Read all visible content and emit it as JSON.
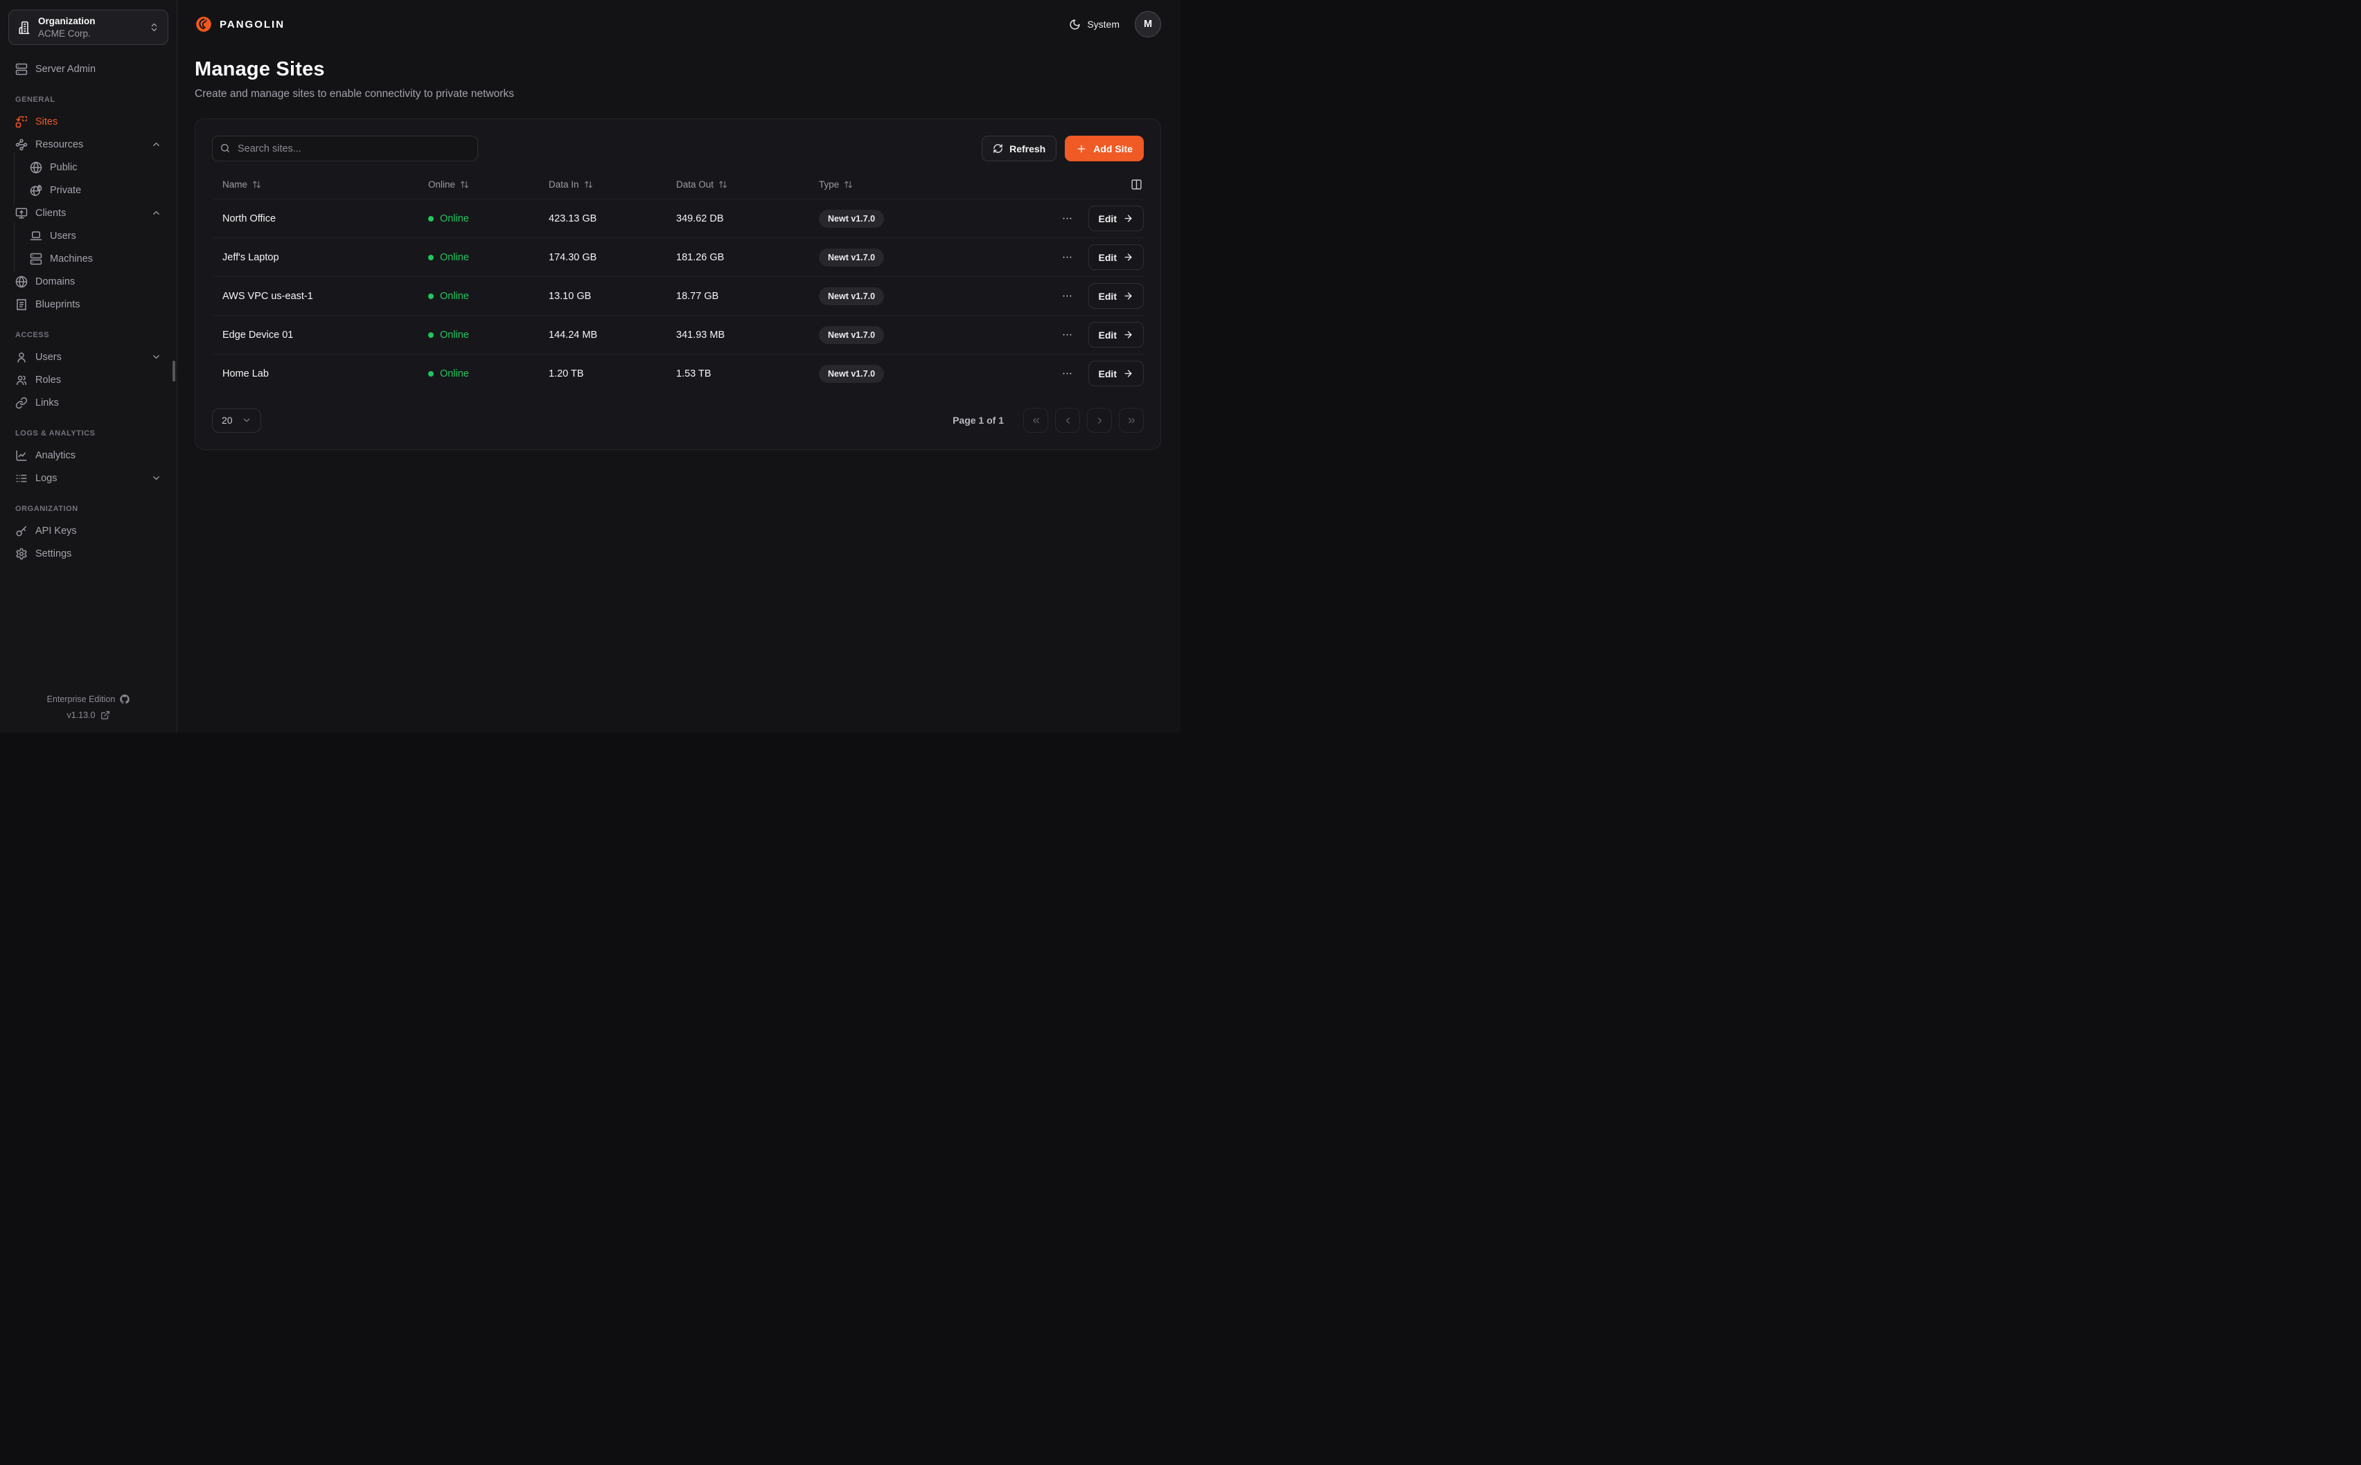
{
  "colors": {
    "accent": "#F05A24",
    "online": "#22C55E"
  },
  "org_selector": {
    "label": "Organization",
    "value": "ACME Corp."
  },
  "brand": {
    "name": "PANGOLIN"
  },
  "topbar": {
    "theme_label": "System",
    "avatar_initial": "M"
  },
  "page": {
    "title": "Manage Sites",
    "subtitle": "Create and manage sites to enable connectivity to private networks"
  },
  "toolbar": {
    "search_placeholder": "Search sites...",
    "refresh_label": "Refresh",
    "add_site_label": "Add Site"
  },
  "sidebar": {
    "sections": [
      {
        "label": "",
        "items": [
          {
            "id": "server-admin",
            "icon": "server",
            "label": "Server Admin"
          }
        ]
      },
      {
        "label": "GENERAL",
        "items": [
          {
            "id": "sites",
            "icon": "sites",
            "label": "Sites",
            "active": true
          },
          {
            "id": "resources",
            "icon": "waypoints",
            "label": "Resources",
            "chevron": "up"
          },
          {
            "id": "resources-public",
            "icon": "globe",
            "label": "Public",
            "sub": true
          },
          {
            "id": "resources-private",
            "icon": "globe-lock",
            "label": "Private",
            "sub": true
          },
          {
            "id": "clients",
            "icon": "monitor-up",
            "label": "Clients",
            "chevron": "up"
          },
          {
            "id": "clients-users",
            "icon": "laptop",
            "label": "Users",
            "sub": true
          },
          {
            "id": "clients-machines",
            "icon": "server",
            "label": "Machines",
            "sub": true
          },
          {
            "id": "domains",
            "icon": "globe",
            "label": "Domains"
          },
          {
            "id": "blueprints",
            "icon": "receipt",
            "label": "Blueprints"
          }
        ]
      },
      {
        "label": "ACCESS",
        "items": [
          {
            "id": "users",
            "icon": "user",
            "label": "Users",
            "chevron": "down"
          },
          {
            "id": "roles",
            "icon": "users",
            "label": "Roles"
          },
          {
            "id": "links",
            "icon": "link",
            "label": "Links"
          }
        ]
      },
      {
        "label": "LOGS & ANALYTICS",
        "items": [
          {
            "id": "analytics",
            "icon": "chart",
            "label": "Analytics"
          },
          {
            "id": "logs",
            "icon": "logs",
            "label": "Logs",
            "chevron": "down"
          }
        ]
      },
      {
        "label": "ORGANIZATION",
        "items": [
          {
            "id": "api-keys",
            "icon": "key",
            "label": "API Keys"
          },
          {
            "id": "settings",
            "icon": "settings",
            "label": "Settings"
          }
        ]
      }
    ]
  },
  "table": {
    "columns": [
      "Name",
      "Online",
      "Data In",
      "Data Out",
      "Type"
    ],
    "edit_label": "Edit",
    "rows": [
      {
        "name": "North Office",
        "status": "Online",
        "data_in": "423.13 GB",
        "data_out": "349.62 DB",
        "type": "Newt v1.7.0"
      },
      {
        "name": "Jeff's Laptop",
        "status": "Online",
        "data_in": "174.30 GB",
        "data_out": "181.26 GB",
        "type": "Newt v1.7.0"
      },
      {
        "name": "AWS VPC us-east-1",
        "status": "Online",
        "data_in": "13.10 GB",
        "data_out": "18.77 GB",
        "type": "Newt v1.7.0"
      },
      {
        "name": "Edge Device 01",
        "status": "Online",
        "data_in": "144.24 MB",
        "data_out": "341.93 MB",
        "type": "Newt v1.7.0"
      },
      {
        "name": "Home Lab",
        "status": "Online",
        "data_in": "1.20 TB",
        "data_out": "1.53 TB",
        "type": "Newt v1.7.0"
      }
    ]
  },
  "pagination": {
    "page_size": "20",
    "page_label": "Page 1 of 1"
  },
  "footer": {
    "edition": "Enterprise Edition",
    "version": "v1.13.0"
  }
}
